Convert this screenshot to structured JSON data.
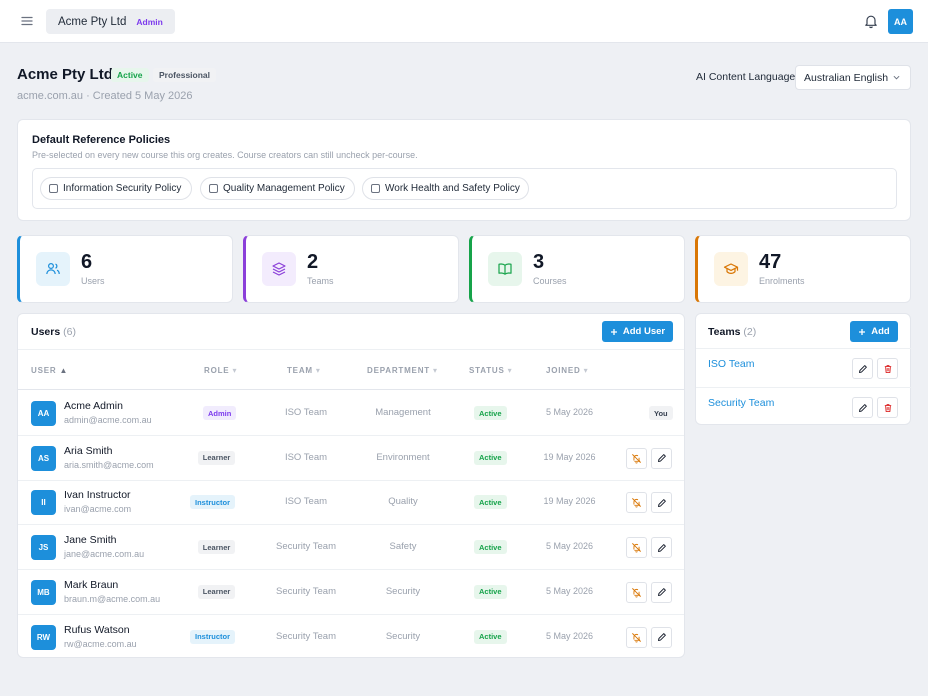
{
  "topbar": {
    "org_name": "Acme Pty Ltd",
    "org_role": "Admin",
    "user_initials": "AA"
  },
  "org": {
    "name": "Acme Pty Ltd",
    "status": "Active",
    "plan": "Professional",
    "meta": "acme.com.au · Created 5 May 2026",
    "language_label": "AI Content Language",
    "language_value": "Australian English"
  },
  "policies": {
    "title": "Default Reference Policies",
    "subtitle": "Pre-selected on every new course this org creates. Course creators can still uncheck per-course.",
    "items": [
      {
        "label": "Information Security Policy",
        "checked": false
      },
      {
        "label": "Quality Management Policy",
        "checked": false
      },
      {
        "label": "Work Health and Safety Policy",
        "checked": false
      }
    ]
  },
  "stats": [
    {
      "value": "6",
      "label": "Users",
      "icon": "users-icon",
      "color": "#1d8fdb",
      "bg": "#e5f3fb"
    },
    {
      "value": "2",
      "label": "Teams",
      "icon": "layers-icon",
      "color": "#8b3fd9",
      "bg": "#f3ecfd"
    },
    {
      "value": "3",
      "label": "Courses",
      "icon": "book-open-icon",
      "color": "#16a34a",
      "bg": "#e7f6ec"
    },
    {
      "value": "47",
      "label": "Enrolments",
      "icon": "graduation-cap-icon",
      "color": "#d97706",
      "bg": "#fdf4e3"
    }
  ],
  "users": {
    "title": "Users",
    "count": "(6)",
    "add_label": "Add User",
    "columns": [
      "USER",
      "ROLE",
      "TEAM",
      "DEPARTMENT",
      "STATUS",
      "JOINED"
    ],
    "rows": [
      {
        "initials": "AA",
        "name": "Acme Admin",
        "email": "admin@acme.com.au",
        "role": "Admin",
        "team": "ISO Team",
        "department": "Management",
        "status": "Active",
        "joined": "5 May 2026",
        "you": "You"
      },
      {
        "initials": "AS",
        "name": "Aria Smith",
        "email": "aria.smith@acme.com",
        "role": "Learner",
        "team": "ISO Team",
        "department": "Environment",
        "status": "Active",
        "joined": "19 May 2026",
        "you": ""
      },
      {
        "initials": "II",
        "name": "Ivan Instructor",
        "email": "ivan@acme.com",
        "role": "Instructor",
        "team": "ISO Team",
        "department": "Quality",
        "status": "Active",
        "joined": "19 May 2026",
        "you": ""
      },
      {
        "initials": "JS",
        "name": "Jane Smith",
        "email": "jane@acme.com.au",
        "role": "Learner",
        "team": "Security Team",
        "department": "Safety",
        "status": "Active",
        "joined": "5 May 2026",
        "you": ""
      },
      {
        "initials": "MB",
        "name": "Mark Braun",
        "email": "braun.m@acme.com.au",
        "role": "Learner",
        "team": "Security Team",
        "department": "Security",
        "status": "Active",
        "joined": "5 May 2026",
        "you": ""
      },
      {
        "initials": "RW",
        "name": "Rufus Watson",
        "email": "rw@acme.com.au",
        "role": "Instructor",
        "team": "Security Team",
        "department": "Security",
        "status": "Active",
        "joined": "5 May 2026",
        "you": ""
      }
    ]
  },
  "teams": {
    "title": "Teams",
    "count": "(2)",
    "add_label": "Add",
    "items": [
      "ISO Team",
      "Security Team"
    ]
  },
  "colors": {
    "primary": "#1d8fdb",
    "active": "#16a34a",
    "danger": "#dc2626",
    "disable_action": "#d97706"
  }
}
